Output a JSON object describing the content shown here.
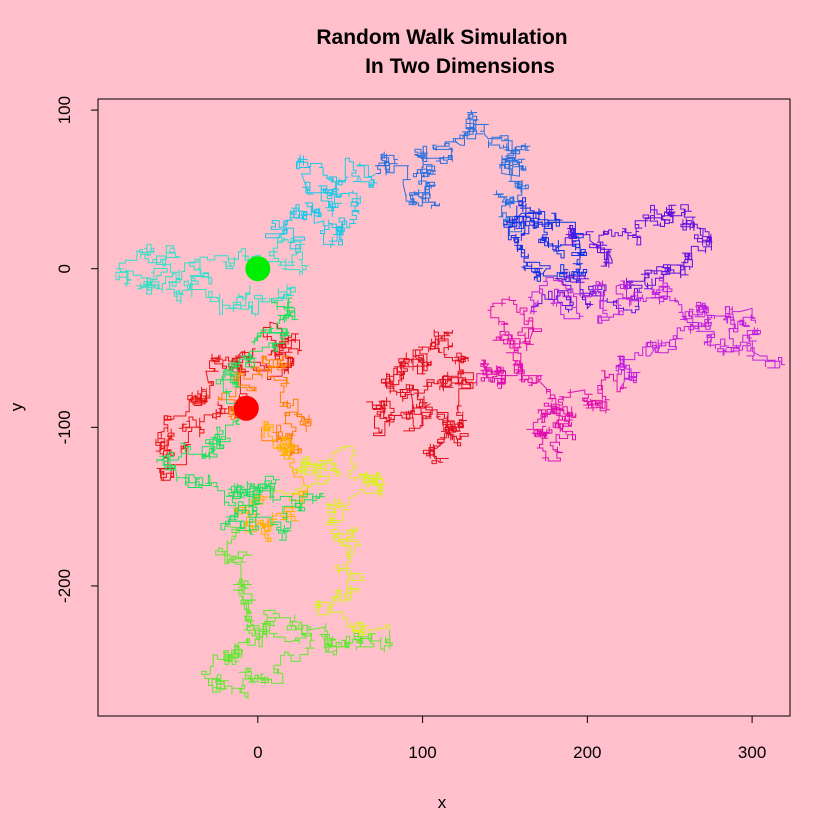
{
  "chart_data": {
    "type": "line",
    "title": "Random Walk Simulation",
    "subtitle": "In Two Dimensions",
    "xlabel": "x",
    "ylabel": "y",
    "xlim": [
      -97,
      323
    ],
    "ylim": [
      -282,
      107
    ],
    "x_ticks": [
      0,
      100,
      200,
      300
    ],
    "y_ticks": [
      -200,
      -100,
      0,
      100
    ],
    "x_tick_labels": [
      "0",
      "100",
      "200",
      "300"
    ],
    "y_tick_labels": [
      "-200",
      "-100",
      "0",
      "100"
    ],
    "grid": false,
    "legend": "none",
    "background": "#FFC0CB",
    "series": [
      {
        "color": "#E81515",
        "points": [
          [
            -7,
            -88
          ],
          [
            5,
            -60
          ],
          [
            12,
            -35
          ],
          [
            -12,
            -55
          ],
          [
            -30,
            -72
          ],
          [
            -52,
            -95
          ],
          [
            -60,
            -115
          ],
          [
            -40,
            -100
          ],
          [
            -15,
            -92
          ]
        ]
      },
      {
        "color": "#FF7F00",
        "points": [
          [
            -15,
            -92
          ],
          [
            -5,
            -75
          ],
          [
            12,
            -62
          ],
          [
            20,
            -85
          ],
          [
            28,
            -95
          ],
          [
            15,
            -108
          ],
          [
            2,
            -100
          ]
        ]
      },
      {
        "color": "#FFB000",
        "points": [
          [
            2,
            -100
          ],
          [
            18,
            -118
          ],
          [
            28,
            -135
          ],
          [
            20,
            -155
          ],
          [
            8,
            -165
          ],
          [
            -5,
            -152
          ],
          [
            10,
            -140
          ]
        ]
      },
      {
        "color": "#D8F020",
        "points": [
          [
            10,
            -140
          ],
          [
            30,
            -122
          ],
          [
            48,
            -128
          ],
          [
            65,
            -135
          ],
          [
            72,
            -128
          ],
          [
            55,
            -145
          ],
          [
            45,
            -160
          ],
          [
            58,
            -180
          ],
          [
            55,
            -205
          ],
          [
            65,
            -225
          ],
          [
            80,
            -228
          ]
        ]
      },
      {
        "color": "#60E830",
        "points": [
          [
            80,
            -228
          ],
          [
            55,
            -238
          ],
          [
            30,
            -228
          ],
          [
            10,
            -225
          ],
          [
            -10,
            -240
          ],
          [
            -25,
            -258
          ],
          [
            -10,
            -265
          ],
          [
            15,
            -255
          ],
          [
            20,
            -235
          ],
          [
            -5,
            -215
          ],
          [
            -15,
            -185
          ],
          [
            -20,
            -162
          ]
        ]
      },
      {
        "color": "#20E060",
        "points": [
          [
            -20,
            -162
          ],
          [
            -5,
            -145
          ],
          [
            10,
            -138
          ],
          [
            25,
            -150
          ],
          [
            15,
            -165
          ],
          [
            -5,
            -162
          ],
          [
            -30,
            -130
          ],
          [
            -50,
            -125
          ],
          [
            -45,
            -110
          ],
          [
            -25,
            -100
          ],
          [
            -10,
            -88
          ],
          [
            -20,
            -70
          ],
          [
            -10,
            -55
          ],
          [
            5,
            -40
          ],
          [
            20,
            -30
          ],
          [
            10,
            -20
          ]
        ]
      },
      {
        "color": "#30E0C8",
        "points": [
          [
            10,
            -20
          ],
          [
            -15,
            -25
          ],
          [
            -40,
            -18
          ],
          [
            -65,
            -10
          ],
          [
            -80,
            0
          ],
          [
            -70,
            10
          ],
          [
            -50,
            8
          ],
          [
            -35,
            -5
          ],
          [
            -15,
            0
          ],
          [
            0,
            5
          ],
          [
            15,
            0
          ],
          [
            25,
            10
          ]
        ]
      },
      {
        "color": "#20C8E8",
        "points": [
          [
            25,
            10
          ],
          [
            15,
            25
          ],
          [
            20,
            35
          ],
          [
            40,
            30
          ],
          [
            50,
            22
          ],
          [
            60,
            40
          ],
          [
            45,
            58
          ],
          [
            30,
            50
          ],
          [
            45,
            48
          ],
          [
            60,
            55
          ],
          [
            72,
            60
          ]
        ]
      },
      {
        "color": "#2870E0",
        "points": [
          [
            72,
            60
          ],
          [
            90,
            45
          ],
          [
            110,
            40
          ],
          [
            100,
            58
          ],
          [
            95,
            72
          ],
          [
            110,
            70
          ],
          [
            120,
            80
          ],
          [
            130,
            88
          ],
          [
            140,
            82
          ],
          [
            148,
            60
          ],
          [
            160,
            75
          ],
          [
            158,
            55
          ],
          [
            150,
            45
          ],
          [
            148,
            35
          ],
          [
            160,
            30
          ]
        ]
      },
      {
        "color": "#1030E8",
        "points": [
          [
            160,
            30
          ],
          [
            175,
            20
          ],
          [
            185,
            15
          ],
          [
            195,
            10
          ],
          [
            185,
            -5
          ],
          [
            175,
            0
          ],
          [
            160,
            15
          ],
          [
            150,
            30
          ],
          [
            160,
            35
          ],
          [
            170,
            28
          ],
          [
            180,
            35
          ],
          [
            192,
            25
          ]
        ]
      },
      {
        "color": "#6010E0",
        "points": [
          [
            192,
            25
          ],
          [
            205,
            15
          ],
          [
            215,
            5
          ],
          [
            230,
            15
          ],
          [
            238,
            30
          ],
          [
            250,
            35
          ],
          [
            265,
            28
          ],
          [
            275,
            20
          ],
          [
            262,
            8
          ],
          [
            248,
            0
          ],
          [
            235,
            -10
          ],
          [
            222,
            -25
          ],
          [
            200,
            -25
          ],
          [
            182,
            -15
          ],
          [
            170,
            -22
          ]
        ]
      },
      {
        "color": "#C020E0",
        "points": [
          [
            170,
            -22
          ],
          [
            195,
            -30
          ],
          [
            220,
            -10
          ],
          [
            240,
            -15
          ],
          [
            255,
            -20
          ],
          [
            268,
            -25
          ],
          [
            285,
            -30
          ],
          [
            300,
            -25
          ],
          [
            305,
            -55
          ],
          [
            290,
            -50
          ],
          [
            275,
            -45
          ],
          [
            262,
            -35
          ],
          [
            250,
            -45
          ],
          [
            238,
            -55
          ],
          [
            228,
            -70
          ],
          [
            220,
            -75
          ]
        ]
      },
      {
        "color": "#E010B0",
        "points": [
          [
            220,
            -75
          ],
          [
            205,
            -85
          ],
          [
            190,
            -78
          ],
          [
            180,
            -90
          ],
          [
            172,
            -105
          ],
          [
            180,
            -115
          ],
          [
            185,
            -100
          ],
          [
            178,
            -85
          ],
          [
            170,
            -70
          ],
          [
            158,
            -50
          ],
          [
            152,
            -35
          ],
          [
            165,
            -45
          ],
          [
            160,
            -65
          ],
          [
            148,
            -72
          ],
          [
            140,
            -60
          ],
          [
            132,
            -72
          ]
        ]
      },
      {
        "color": "#E01020",
        "points": [
          [
            132,
            -72
          ],
          [
            122,
            -55
          ],
          [
            113,
            -40
          ],
          [
            105,
            -58
          ],
          [
            95,
            -55
          ],
          [
            85,
            -65
          ],
          [
            75,
            -72
          ],
          [
            88,
            -82
          ],
          [
            95,
            -90
          ],
          [
            80,
            -95
          ],
          [
            78,
            -88
          ],
          [
            95,
            -100
          ],
          [
            110,
            -95
          ],
          [
            118,
            -108
          ],
          [
            110,
            -122
          ],
          [
            112,
            -110
          ],
          [
            120,
            -100
          ],
          [
            122,
            -85
          ],
          [
            112,
            -75
          ],
          [
            105,
            -85
          ]
        ]
      }
    ],
    "markers": [
      {
        "x": 0,
        "y": 0,
        "color": "#00EE00"
      },
      {
        "x": -7,
        "y": -88,
        "color": "#FF0000"
      }
    ]
  }
}
